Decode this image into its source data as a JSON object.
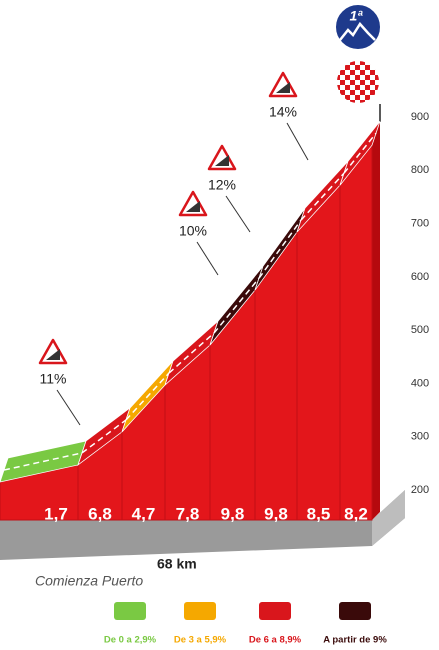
{
  "chart_data": {
    "type": "climb-profile",
    "badge": "1ª",
    "start_label": "Comienza Puerto",
    "distance_label": "68 km",
    "values": [
      1.7,
      6.8,
      4.7,
      7.8,
      9.8,
      9.8,
      8.5,
      8.2
    ],
    "value_labels": [
      "1,7",
      "6,8",
      "4,7",
      "7,8",
      "9,8",
      "9,8",
      "8,5",
      "8,2"
    ],
    "elevation": [
      215,
      247,
      309,
      397,
      472,
      575,
      684,
      772,
      847
    ],
    "ylim": [
      200,
      900
    ],
    "yticks": [
      200,
      300,
      400,
      500,
      600,
      700,
      800,
      900
    ],
    "annotations": [
      "11%",
      "10%",
      "12%",
      "14%"
    ],
    "legend": [
      {
        "label": "De 0 a 2,9%",
        "color": "#7ac943",
        "from": 0
      },
      {
        "label": "De 3 a 5,9%",
        "color": "#f5a800",
        "from": 3
      },
      {
        "label": "De 6 a 8,9%",
        "color": "#d9161c",
        "from": 6
      },
      {
        "label": "A partir de 9%",
        "color": "#3a0a0a",
        "from": 9
      }
    ]
  }
}
